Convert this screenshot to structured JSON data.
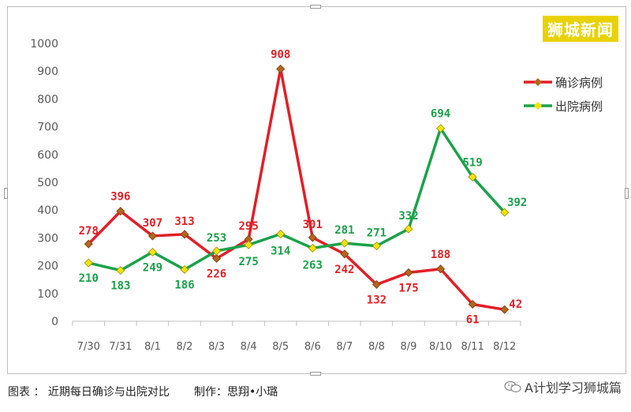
{
  "brand_watermark": "狮城新闻",
  "caption": "图表 ： 近期每日确诊与出院对比       制作：思翔•小璐",
  "wechat_account": "A计划学习狮城篇",
  "colors": {
    "confirmed": "#e21f26",
    "discharged": "#1aa24a",
    "confirmed_marker": "#b5651d",
    "discharged_marker": "#f5e400"
  },
  "chart_data": {
    "type": "line",
    "categories": [
      "7/30",
      "7/31",
      "8/1",
      "8/2",
      "8/3",
      "8/4",
      "8/5",
      "8/6",
      "8/7",
      "8/8",
      "8/9",
      "8/10",
      "8/11",
      "8/12"
    ],
    "series": [
      {
        "name": "确诊病例",
        "values": [
          278,
          396,
          307,
          313,
          226,
          295,
          908,
          301,
          242,
          132,
          175,
          188,
          61,
          42
        ]
      },
      {
        "name": "出院病例",
        "values": [
          210,
          183,
          249,
          186,
          253,
          275,
          314,
          263,
          281,
          271,
          332,
          694,
          519,
          392
        ]
      }
    ],
    "ylim": [
      0,
      1000
    ],
    "yticks": [
      0,
      100,
      200,
      300,
      400,
      500,
      600,
      700,
      800,
      900,
      1000
    ],
    "grid": false,
    "legend": "right"
  }
}
